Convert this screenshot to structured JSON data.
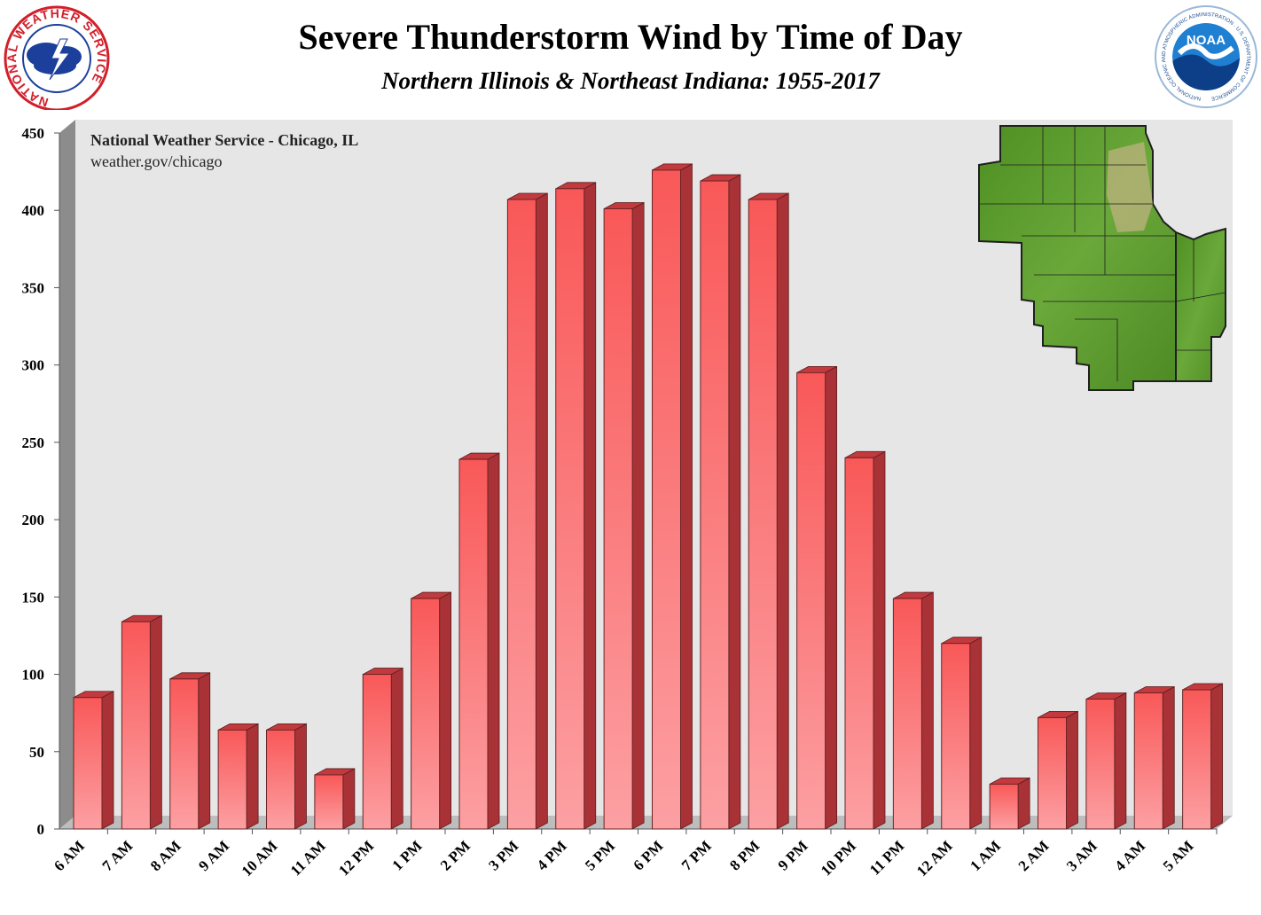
{
  "header": {
    "title": "Severe Thunderstorm Wind by Time of Day",
    "subtitle": "Northern Illinois & Northeast Indiana: 1955-2017"
  },
  "logos": {
    "nws_text": "NATIONAL WEATHER SERVICE",
    "noaa_center": "NOAA",
    "noaa_ring_text": "NATIONAL OCEANIC AND ATMOSPHERIC ADMINISTRATION · U.S. DEPARTMENT OF COMMERCE"
  },
  "annotation": {
    "line1": "National Weather Service - Chicago, IL",
    "line2": "weather.gov/chicago"
  },
  "colors": {
    "bar_top": "#f95858",
    "bar_bottom": "#fca0a3",
    "bar_side": "#a83236",
    "bar_cap": "#c23a3e",
    "wall": "#e6e6e6",
    "floor": "#bdbdbd",
    "left_wall": "#8c8c8c",
    "map_green": "#5c9a2c"
  },
  "chart_data": {
    "type": "bar",
    "title": "Severe Thunderstorm Wind by Time of Day",
    "subtitle": "Northern Illinois & Northeast Indiana: 1955-2017",
    "xlabel": "",
    "ylabel": "",
    "ylim": [
      0,
      450
    ],
    "yticks": [
      0,
      50,
      100,
      150,
      200,
      250,
      300,
      350,
      400,
      450
    ],
    "grid": false,
    "legend": "none",
    "categories": [
      "6 AM",
      "7 AM",
      "8 AM",
      "9 AM",
      "10 AM",
      "11 AM",
      "12 PM",
      "1 PM",
      "2 PM",
      "3 PM",
      "4 PM",
      "5 PM",
      "6 PM",
      "7 PM",
      "8 PM",
      "9 PM",
      "10 PM",
      "11 PM",
      "12 AM",
      "1 AM",
      "2 AM",
      "3 AM",
      "4 AM",
      "5 AM"
    ],
    "values": [
      85,
      134,
      97,
      64,
      64,
      35,
      100,
      149,
      239,
      407,
      414,
      401,
      426,
      419,
      407,
      295,
      240,
      149,
      120,
      29,
      72,
      84,
      88,
      90
    ]
  }
}
